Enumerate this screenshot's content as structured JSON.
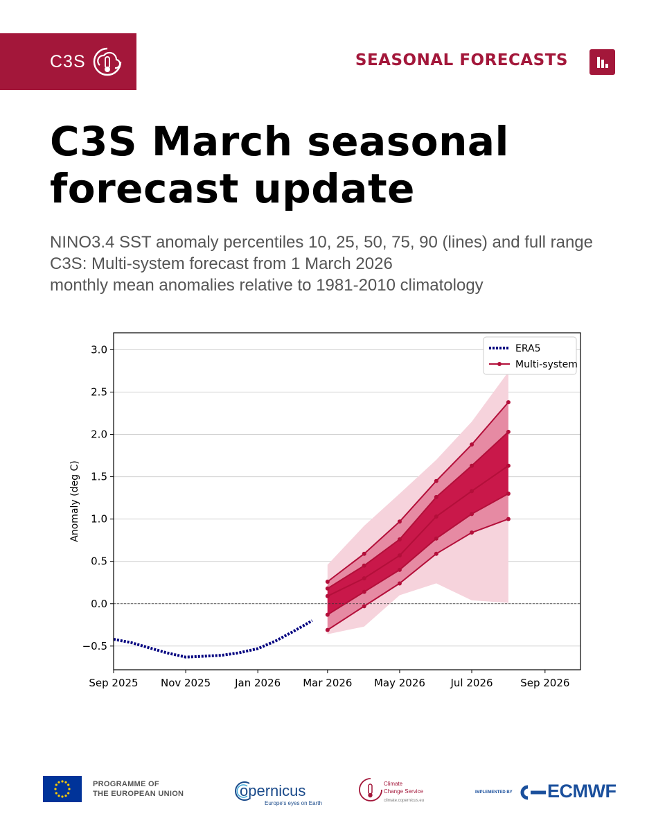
{
  "header": {
    "brand": "C3S",
    "section_label": "SEASONAL FORECASTS",
    "brand_color": "#a3173a"
  },
  "title": "C3S March seasonal forecast update",
  "subtitle": {
    "line1": "NINO3.4 SST anomaly percentiles 10, 25, 50, 75, 90 (lines) and full range",
    "line2": "C3S: Multi-system forecast from 1 March 2026",
    "line3": "monthly mean anomalies relative to 1981-2010 climatology"
  },
  "chart_data": {
    "type": "line",
    "ylabel": "Anomaly (deg C)",
    "xlabel": "",
    "ylim": [
      -0.78,
      3.2
    ],
    "xlim": [
      "2025-09-01",
      "2026-10-01"
    ],
    "yticks": [
      -0.5,
      0.0,
      0.5,
      1.0,
      1.5,
      2.0,
      2.5,
      3.0
    ],
    "ytick_labels": [
      "−0.5",
      "0.0",
      "0.5",
      "1.0",
      "1.5",
      "2.0",
      "2.5",
      "3.0"
    ],
    "xticks": [
      "2025-09-01",
      "2025-11-01",
      "2026-01-01",
      "2026-03-01",
      "2026-05-01",
      "2026-07-01",
      "2026-09-01"
    ],
    "xtick_labels": [
      "Sep 2025",
      "Nov 2025",
      "Jan 2026",
      "Mar 2026",
      "May 2026",
      "Jul 2026",
      "Sep 2026"
    ],
    "grid": "horizontal",
    "zero_line": true,
    "legend_position": "top-right",
    "series": [
      {
        "name": "ERA5",
        "style": "dotted",
        "color": "#00007f",
        "x": [
          "2025-09-01",
          "2025-09-16",
          "2025-10-01",
          "2025-10-16",
          "2025-11-01",
          "2025-11-16",
          "2025-12-01",
          "2025-12-16",
          "2026-01-01",
          "2026-01-16",
          "2026-02-01",
          "2026-02-16"
        ],
        "y": [
          -0.42,
          -0.46,
          -0.52,
          -0.58,
          -0.63,
          -0.62,
          -0.61,
          -0.58,
          -0.53,
          -0.44,
          -0.32,
          -0.2
        ]
      },
      {
        "name": "Multi-system",
        "style": "solid-markers",
        "color": "#b30f3a",
        "x": [
          "2026-03-01",
          "2026-04-01",
          "2026-05-01",
          "2026-06-01",
          "2026-07-01",
          "2026-08-01"
        ],
        "percentiles": {
          "p10": [
            -0.31,
            -0.03,
            0.24,
            0.59,
            0.84,
            1.0
          ],
          "p25": [
            -0.13,
            0.14,
            0.4,
            0.77,
            1.06,
            1.3
          ],
          "p50": [
            0.09,
            0.3,
            0.57,
            1.03,
            1.33,
            1.63
          ],
          "p75": [
            0.18,
            0.45,
            0.76,
            1.26,
            1.63,
            2.03
          ],
          "p90": [
            0.26,
            0.59,
            0.97,
            1.45,
            1.88,
            2.38
          ]
        },
        "full_range": {
          "min": [
            -0.36,
            -0.27,
            0.1,
            0.24,
            0.04,
            0.01
          ],
          "max": [
            0.46,
            0.92,
            1.3,
            1.7,
            2.15,
            2.74
          ]
        },
        "colors": {
          "full_range": "#f6d3dc",
          "outer_band": "#e68aa3",
          "inner_band": "#c9184a",
          "line": "#b30f3a"
        }
      }
    ]
  },
  "footer": {
    "eu_line1": "PROGRAMME OF",
    "eu_line2": "THE EUROPEAN UNION",
    "copernicus_name": "opernicus",
    "copernicus_tagline": "Europe's eyes on Earth",
    "c3s_line1": "Climate",
    "c3s_line2": "Change Service",
    "c3s_url": "climate.copernicus.eu",
    "ecmwf_prefix": "IMPLEMENTED BY",
    "ecmwf_name": "ECMWF"
  }
}
